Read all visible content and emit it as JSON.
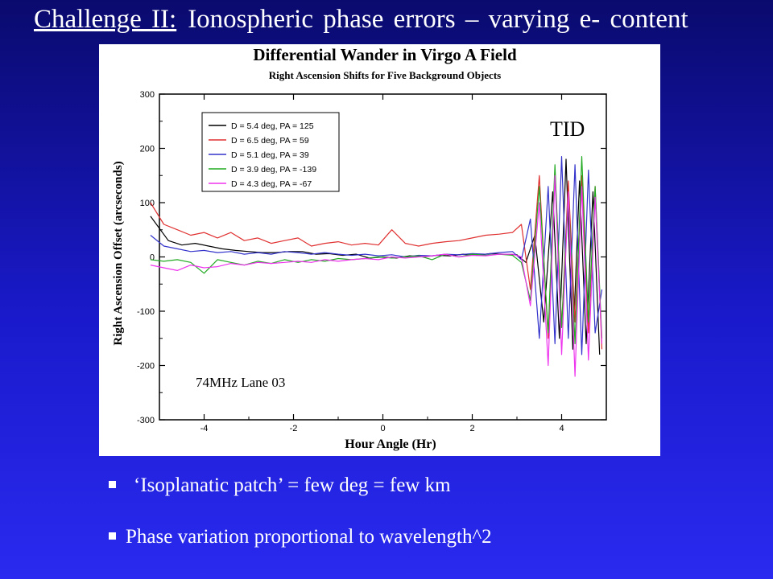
{
  "slide": {
    "title_prefix": "Challenge II:",
    "title_rest": "Ionospheric phase errors – varying e- content",
    "bullets": [
      "‘Isoplanatic patch’ = few deg = few km",
      "Phase variation proportional to wavelength^2"
    ]
  },
  "annotations": {
    "tid": "TID",
    "frequency": "74MHz Lane 03"
  },
  "colors": {
    "background_top": "#0a0a6e",
    "background_bottom": "#2a2af0",
    "series": [
      "#000000",
      "#e03030",
      "#3333cc",
      "#22aa22",
      "#ee33ee"
    ]
  },
  "chart_data": {
    "type": "line",
    "title": "Differential Wander in Virgo A Field",
    "subtitle": "Right Ascension Shifts for Five Background Objects",
    "xlabel": "Hour Angle (Hr)",
    "ylabel": "Right Ascension Offset (arcseconds)",
    "xlim": [
      -5,
      5
    ],
    "ylim": [
      -300,
      300
    ],
    "xticks": [
      -4,
      -2,
      0,
      2,
      4
    ],
    "yticks": [
      300,
      200,
      100,
      0,
      -100,
      -200,
      -300
    ],
    "grid": false,
    "legend": "top-left",
    "series": [
      {
        "name": "D = 5.4 deg, PA = 125",
        "x": [
          -5.2,
          -4.8,
          -4.5,
          -4.2,
          -3.9,
          -3.6,
          -3.3,
          -3.0,
          -2.7,
          -2.4,
          -2.1,
          -1.8,
          -1.5,
          -1.2,
          -0.9,
          -0.6,
          -0.3,
          0.0,
          0.3,
          0.6,
          0.9,
          1.2,
          1.5,
          1.8,
          2.1,
          2.4,
          2.7,
          3.0,
          3.2,
          3.4,
          3.6,
          3.8,
          3.95,
          4.1,
          4.25,
          4.4,
          4.55,
          4.7,
          4.85
        ],
        "y": [
          75,
          30,
          22,
          25,
          20,
          15,
          12,
          10,
          8,
          8,
          10,
          10,
          5,
          6,
          3,
          5,
          -2,
          0,
          -2,
          2,
          0,
          3,
          2,
          5,
          3,
          6,
          5,
          4,
          -10,
          40,
          -120,
          120,
          -150,
          180,
          -170,
          140,
          -160,
          120,
          -180
        ]
      },
      {
        "name": "D = 6.5 deg, PA = 59",
        "x": [
          -5.2,
          -4.9,
          -4.6,
          -4.3,
          -4.0,
          -3.7,
          -3.4,
          -3.1,
          -2.8,
          -2.5,
          -2.2,
          -1.9,
          -1.6,
          -1.3,
          -1.0,
          -0.7,
          -0.4,
          -0.1,
          0.2,
          0.5,
          0.8,
          1.1,
          1.4,
          1.7,
          2.0,
          2.3,
          2.6,
          2.9,
          3.1,
          3.3,
          3.5,
          3.7,
          3.85,
          4.0,
          4.15,
          4.3,
          4.45,
          4.6,
          4.75,
          4.9
        ],
        "y": [
          100,
          60,
          50,
          40,
          45,
          35,
          45,
          30,
          35,
          25,
          30,
          35,
          20,
          25,
          28,
          22,
          25,
          22,
          50,
          25,
          20,
          25,
          28,
          30,
          35,
          40,
          42,
          45,
          60,
          -60,
          150,
          -150,
          160,
          -130,
          140,
          -120,
          150,
          -140,
          130,
          -170
        ]
      },
      {
        "name": "D = 5.1 deg, PA = 39",
        "x": [
          -5.2,
          -4.9,
          -4.6,
          -4.3,
          -4.0,
          -3.7,
          -3.4,
          -3.1,
          -2.8,
          -2.5,
          -2.2,
          -1.9,
          -1.6,
          -1.3,
          -1.0,
          -0.7,
          -0.4,
          -0.1,
          0.2,
          0.5,
          0.8,
          1.1,
          1.4,
          1.7,
          2.0,
          2.3,
          2.6,
          2.9,
          3.1,
          3.3,
          3.5,
          3.7,
          3.85,
          4.0,
          4.15,
          4.3,
          4.45,
          4.6,
          4.75,
          4.9
        ],
        "y": [
          40,
          20,
          15,
          10,
          12,
          8,
          10,
          5,
          8,
          5,
          10,
          8,
          5,
          8,
          5,
          3,
          5,
          2,
          4,
          0,
          3,
          2,
          5,
          4,
          6,
          5,
          8,
          10,
          -5,
          70,
          -150,
          130,
          -160,
          185,
          -150,
          170,
          -180,
          160,
          -140,
          -60
        ]
      },
      {
        "name": "D = 3.9 deg, PA = -139",
        "x": [
          -5.2,
          -4.9,
          -4.6,
          -4.3,
          -4.0,
          -3.7,
          -3.4,
          -3.1,
          -2.8,
          -2.5,
          -2.2,
          -1.9,
          -1.6,
          -1.3,
          -1.0,
          -0.7,
          -0.4,
          -0.1,
          0.2,
          0.5,
          0.8,
          1.1,
          1.4,
          1.7,
          2.0,
          2.3,
          2.6,
          2.9,
          3.1,
          3.3,
          3.5,
          3.7,
          3.85,
          4.0,
          4.15,
          4.3,
          4.45,
          4.6,
          4.75,
          4.9
        ],
        "y": [
          -5,
          -8,
          -5,
          -10,
          -30,
          -5,
          -10,
          -15,
          -8,
          -12,
          -5,
          -10,
          -5,
          -8,
          -3,
          -5,
          -3,
          0,
          -2,
          0,
          2,
          -5,
          5,
          0,
          5,
          3,
          5,
          3,
          -10,
          -80,
          130,
          -140,
          170,
          -130,
          120,
          -160,
          185,
          -120,
          130,
          -150
        ]
      },
      {
        "name": "D = 4.3 deg, PA = -67",
        "x": [
          -5.2,
          -4.9,
          -4.6,
          -4.3,
          -4.0,
          -3.7,
          -3.4,
          -3.1,
          -2.8,
          -2.5,
          -2.2,
          -1.9,
          -1.6,
          -1.3,
          -1.0,
          -0.7,
          -0.4,
          -0.1,
          0.2,
          0.5,
          0.8,
          1.1,
          1.4,
          1.7,
          2.0,
          2.3,
          2.6,
          2.9,
          3.1,
          3.3,
          3.5,
          3.7,
          3.85,
          4.0,
          4.15,
          4.3,
          4.45,
          4.6,
          4.75,
          4.9
        ],
        "y": [
          -15,
          -20,
          -25,
          -15,
          -20,
          -18,
          -12,
          -15,
          -10,
          -12,
          -10,
          -8,
          -10,
          -5,
          -8,
          -5,
          -3,
          -5,
          0,
          -2,
          0,
          2,
          5,
          0,
          3,
          2,
          5,
          5,
          0,
          -90,
          100,
          -200,
          150,
          -180,
          120,
          -220,
          130,
          -190,
          110,
          -160
        ]
      }
    ]
  }
}
